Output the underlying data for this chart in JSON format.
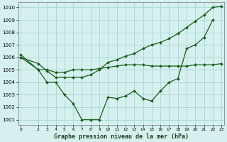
{
  "xlabel": "Graphe pression niveau de la mer (hPa)",
  "bg_color": "#d6f0f0",
  "grid_color": "#a8d8d0",
  "line_color": "#1a5c1a",
  "x": [
    0,
    1,
    2,
    3,
    4,
    5,
    6,
    7,
    8,
    9,
    10,
    11,
    12,
    13,
    14,
    15,
    16,
    17,
    18,
    19,
    20,
    21,
    22,
    23
  ],
  "line1_x": [
    0,
    2,
    3,
    4,
    5,
    6,
    7,
    8,
    9,
    10,
    11,
    12,
    13,
    14,
    15,
    16,
    17,
    18,
    19,
    20,
    21,
    22
  ],
  "line1_y": [
    1006.2,
    1005.0,
    1004.0,
    1004.0,
    1003.0,
    1002.3,
    1001.0,
    1001.0,
    1001.0,
    1002.8,
    1002.7,
    1002.9,
    1003.3,
    1002.7,
    1002.5,
    1003.3,
    1004.0,
    1004.3,
    1006.7,
    1007.0,
    1007.6,
    1009.0
  ],
  "line2_x": [
    0,
    2,
    3,
    4,
    5,
    6,
    7,
    8,
    9,
    10,
    11,
    12,
    13,
    14,
    15,
    16,
    17,
    18,
    19,
    20,
    21,
    22,
    23
  ],
  "line2_y": [
    1006.0,
    1005.0,
    1005.0,
    1004.8,
    1004.8,
    1005.0,
    1005.0,
    1005.0,
    1005.1,
    1005.2,
    1005.3,
    1005.4,
    1005.4,
    1005.4,
    1005.3,
    1005.3,
    1005.3,
    1005.3,
    1005.3,
    1005.4,
    1005.4,
    1005.4,
    1005.5
  ],
  "line3_x": [
    0,
    2,
    3,
    4,
    5,
    6,
    7,
    8,
    9,
    10,
    11,
    12,
    13,
    14,
    15,
    16,
    17,
    18,
    19,
    20,
    21,
    22,
    23
  ],
  "line3_y": [
    1006.0,
    1005.5,
    1004.9,
    1004.4,
    1004.4,
    1004.4,
    1004.4,
    1004.6,
    1005.0,
    1005.6,
    1005.8,
    1006.1,
    1006.3,
    1006.7,
    1007.0,
    1007.2,
    1007.5,
    1007.9,
    1008.4,
    1008.9,
    1009.4,
    1010.0,
    1010.1
  ],
  "ylim": [
    1001,
    1010
  ],
  "yticks": [
    1001,
    1002,
    1003,
    1004,
    1005,
    1006,
    1007,
    1008,
    1009,
    1010
  ],
  "xtick_positions": [
    0,
    2,
    3,
    4,
    5,
    6,
    7,
    8,
    9,
    10,
    11,
    12,
    13,
    14,
    15,
    16,
    17,
    18,
    19,
    20,
    21,
    22,
    23
  ],
  "xtick_labels": [
    "0",
    "2",
    "3",
    "4",
    "5",
    "6",
    "7",
    "8",
    "9",
    "10",
    "11",
    "12",
    "13",
    "14",
    "15",
    "16",
    "17",
    "18",
    "19",
    "20",
    "21",
    "22",
    "23"
  ]
}
